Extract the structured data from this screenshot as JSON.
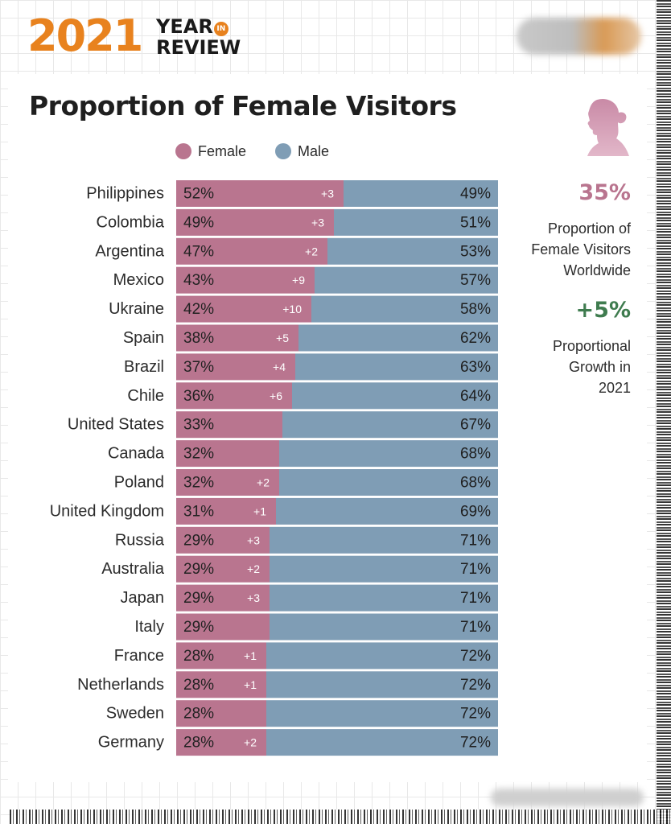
{
  "header": {
    "year": "2021",
    "year_in_review_line1": "YEAR",
    "year_in_review_in": "IN",
    "year_in_review_line2": "REVIEW"
  },
  "title": "Proportion of Female Visitors",
  "legend": {
    "female": "Female",
    "male": "Male"
  },
  "colors": {
    "female": "#b9758f",
    "male": "#7f9db5",
    "accent_pink": "#b9758f",
    "accent_green": "#3f7c4f",
    "logo_orange": "#e8821e"
  },
  "sidebar": {
    "stat1_value": "35%",
    "stat1_text": [
      "Proportion of",
      "Female Visitors",
      "Worldwide"
    ],
    "stat2_value": "+5%",
    "stat2_text": [
      "Proportional",
      "Growth in",
      "2021"
    ],
    "icon": "woman-silhouette-icon"
  },
  "chart_data": {
    "type": "bar",
    "orientation": "horizontal-stacked-100",
    "title": "Proportion of Female Visitors",
    "series_names": [
      "Female",
      "Male"
    ],
    "categories": [
      "Philippines",
      "Colombia",
      "Argentina",
      "Mexico",
      "Ukraine",
      "Spain",
      "Brazil",
      "Chile",
      "United States",
      "Canada",
      "Poland",
      "United Kingdom",
      "Russia",
      "Australia",
      "Japan",
      "Italy",
      "France",
      "Netherlands",
      "Sweden",
      "Germany"
    ],
    "female": [
      52,
      49,
      47,
      43,
      42,
      38,
      37,
      36,
      33,
      32,
      32,
      31,
      29,
      29,
      29,
      29,
      28,
      28,
      28,
      28
    ],
    "male": [
      49,
      51,
      53,
      57,
      58,
      62,
      63,
      64,
      67,
      68,
      68,
      69,
      71,
      71,
      71,
      71,
      72,
      72,
      72,
      72
    ],
    "female_labels": [
      "52%",
      "49%",
      "47%",
      "43%",
      "42%",
      "38%",
      "37%",
      "36%",
      "33%",
      "32%",
      "32%",
      "31%",
      "29%",
      "29%",
      "29%",
      "29%",
      "28%",
      "28%",
      "28%",
      "28%"
    ],
    "male_labels": [
      "49%",
      "51%",
      "53%",
      "57%",
      "58%",
      "62%",
      "63%",
      "64%",
      "67%",
      "68%",
      "68%",
      "69%",
      "71%",
      "71%",
      "71%",
      "71%",
      "72%",
      "72%",
      "72%",
      "72%"
    ],
    "growth": [
      "+3",
      "+3",
      "+2",
      "+9",
      "+10",
      "+5",
      "+4",
      "+6",
      "",
      "",
      "+2",
      "+1",
      "+3",
      "+2",
      "+3",
      "",
      "+1",
      "+1",
      "",
      "+2"
    ]
  }
}
